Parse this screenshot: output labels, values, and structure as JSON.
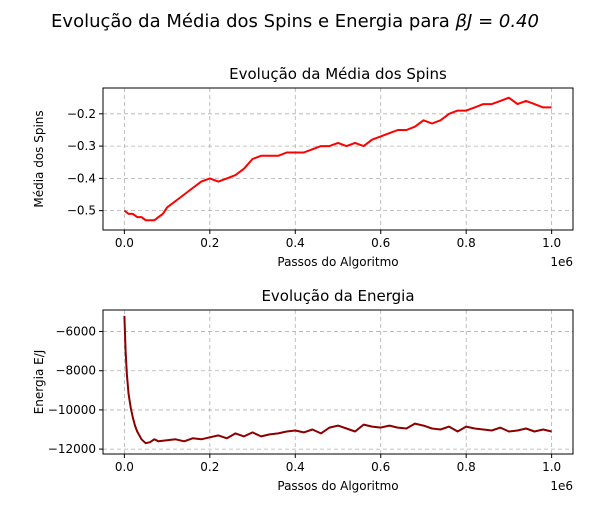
{
  "figure": {
    "suptitle_prefix": "Evolução da Média dos Spins e Energia para ",
    "suptitle_math": "βJ = 0.40"
  },
  "chart_data": [
    {
      "type": "line",
      "title": "Evolução da Média dos Spins",
      "xlabel": "Passos do Algoritmo",
      "ylabel": "Média dos Spins",
      "x_offset_label": "1e6",
      "xlim": [
        -50000,
        1050000
      ],
      "ylim": [
        -0.56,
        -0.12
      ],
      "xticks": [
        0,
        200000,
        400000,
        600000,
        800000,
        1000000
      ],
      "xtick_labels": [
        "0.0",
        "0.2",
        "0.4",
        "0.6",
        "0.8",
        "1.0"
      ],
      "yticks": [
        -0.5,
        -0.4,
        -0.3,
        -0.2
      ],
      "ytick_labels": [
        "−0.5",
        "−0.4",
        "−0.3",
        "−0.2"
      ],
      "grid": true,
      "color": "#ff0000",
      "series": [
        {
          "x": [
            0,
            10000,
            20000,
            30000,
            40000,
            50000,
            60000,
            70000,
            80000,
            90000,
            100000,
            120000,
            140000,
            160000,
            180000,
            200000,
            220000,
            240000,
            260000,
            280000,
            300000,
            320000,
            340000,
            360000,
            380000,
            400000,
            420000,
            440000,
            460000,
            480000,
            500000,
            520000,
            540000,
            560000,
            580000,
            600000,
            620000,
            640000,
            660000,
            680000,
            700000,
            720000,
            740000,
            760000,
            780000,
            800000,
            820000,
            840000,
            860000,
            880000,
            900000,
            920000,
            940000,
            960000,
            980000,
            1000000
          ],
          "y": [
            -0.5,
            -0.51,
            -0.51,
            -0.52,
            -0.52,
            -0.53,
            -0.53,
            -0.53,
            -0.52,
            -0.51,
            -0.49,
            -0.47,
            -0.45,
            -0.43,
            -0.41,
            -0.4,
            -0.41,
            -0.4,
            -0.39,
            -0.37,
            -0.34,
            -0.33,
            -0.33,
            -0.33,
            -0.32,
            -0.32,
            -0.32,
            -0.31,
            -0.3,
            -0.3,
            -0.29,
            -0.3,
            -0.29,
            -0.3,
            -0.28,
            -0.27,
            -0.26,
            -0.25,
            -0.25,
            -0.24,
            -0.22,
            -0.23,
            -0.22,
            -0.2,
            -0.19,
            -0.19,
            -0.18,
            -0.17,
            -0.17,
            -0.16,
            -0.15,
            -0.17,
            -0.16,
            -0.17,
            -0.18,
            -0.18
          ]
        }
      ]
    },
    {
      "type": "line",
      "title": "Evolução da Energia",
      "xlabel": "Passos do Algoritmo",
      "ylabel": "Energia E/J",
      "x_offset_label": "1e6",
      "xlim": [
        -50000,
        1050000
      ],
      "ylim": [
        -12250,
        -4900
      ],
      "xticks": [
        0,
        200000,
        400000,
        600000,
        800000,
        1000000
      ],
      "xtick_labels": [
        "0.0",
        "0.2",
        "0.4",
        "0.6",
        "0.8",
        "1.0"
      ],
      "yticks": [
        -12000,
        -10000,
        -8000,
        -6000
      ],
      "ytick_labels": [
        "−12000",
        "−10000",
        "−8000",
        "−6000"
      ],
      "grid": true,
      "color": "#8b0000",
      "series": [
        {
          "x": [
            0,
            3000,
            6000,
            10000,
            15000,
            20000,
            25000,
            30000,
            40000,
            50000,
            60000,
            70000,
            80000,
            100000,
            120000,
            140000,
            160000,
            180000,
            200000,
            220000,
            240000,
            260000,
            280000,
            300000,
            320000,
            340000,
            360000,
            380000,
            400000,
            420000,
            440000,
            460000,
            480000,
            500000,
            520000,
            540000,
            560000,
            580000,
            600000,
            620000,
            640000,
            660000,
            680000,
            700000,
            720000,
            740000,
            760000,
            780000,
            800000,
            820000,
            840000,
            860000,
            880000,
            900000,
            920000,
            940000,
            960000,
            980000,
            1000000
          ],
          "y": [
            -5200,
            -7000,
            -8200,
            -9200,
            -9900,
            -10400,
            -10800,
            -11100,
            -11500,
            -11700,
            -11650,
            -11500,
            -11600,
            -11550,
            -11500,
            -11600,
            -11450,
            -11500,
            -11400,
            -11300,
            -11450,
            -11200,
            -11350,
            -11150,
            -11350,
            -11250,
            -11200,
            -11100,
            -11050,
            -11150,
            -11000,
            -11200,
            -10900,
            -10800,
            -10950,
            -11100,
            -10750,
            -10850,
            -10900,
            -10800,
            -10900,
            -10950,
            -10700,
            -10800,
            -10950,
            -11000,
            -10850,
            -11100,
            -10850,
            -10950,
            -11000,
            -11050,
            -10900,
            -11100,
            -11050,
            -10950,
            -11100,
            -11000,
            -11100
          ]
        }
      ]
    }
  ]
}
